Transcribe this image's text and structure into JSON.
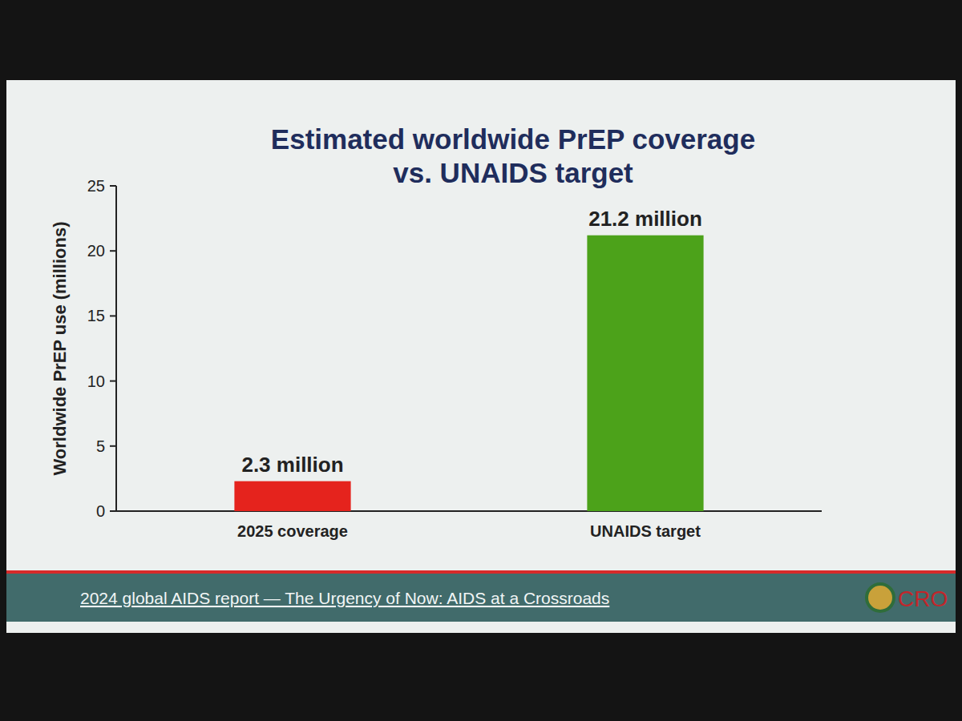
{
  "chart_data": {
    "type": "bar",
    "title": "Estimated worldwide PrEP coverage vs. UNAIDS target",
    "y_label": "Worldwide PrEP use (millions)",
    "categories": [
      "2025 coverage",
      "UNAIDS target"
    ],
    "values": [
      2.3,
      21.2
    ],
    "value_labels": [
      "2.3 million",
      "21.2 million"
    ],
    "colors": [
      "#e5231d",
      "#4ca21a"
    ],
    "ylim": [
      0,
      25
    ],
    "yticks": [
      0,
      5,
      10,
      15,
      20,
      25
    ],
    "grid": false,
    "data_labels": true,
    "source": "2024 global AIDS report — The Urgency of Now: AIDS at a Crossroads",
    "logo_text": "CRO"
  }
}
